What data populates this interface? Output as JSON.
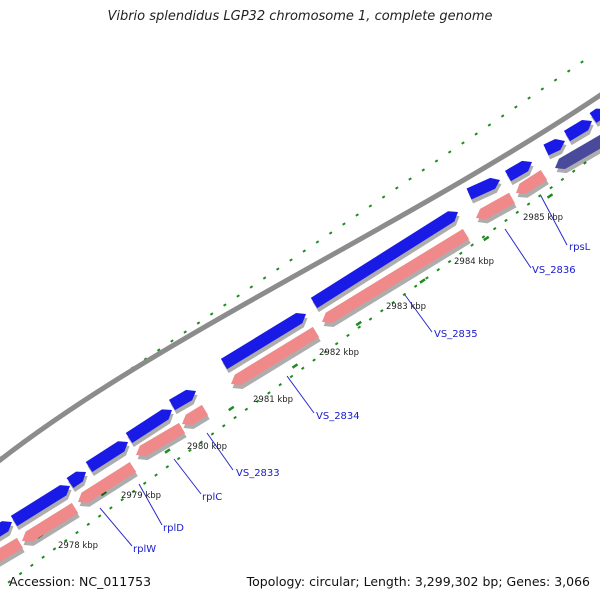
{
  "title": "Vibrio splendidus LGP32 chromosome 1, complete genome",
  "footer": {
    "accession": "Accession: NC_011753",
    "summary": "Topology: circular; Length: 3,299,302 bp; Genes: 3,066"
  },
  "colors": {
    "backbone": "#8c8c8c",
    "forward_gene": "#1a1ae6",
    "reverse_gene": "#f08a8a",
    "dark_gene": "#4a4a9c",
    "ticks": "#1e8c1e",
    "label_line": "#2a2acc"
  },
  "kbp_labels": [
    "2978 kbp",
    "2979 kbp",
    "2980 kbp",
    "2981 kbp",
    "2982 kbp",
    "2983 kbp",
    "2984 kbp",
    "2985 kbp"
  ],
  "gene_labels": [
    "rplW",
    "rplD",
    "rplC",
    "VS_2833",
    "VS_2834",
    "VS_2835",
    "VS_2836",
    "rpsL"
  ]
}
